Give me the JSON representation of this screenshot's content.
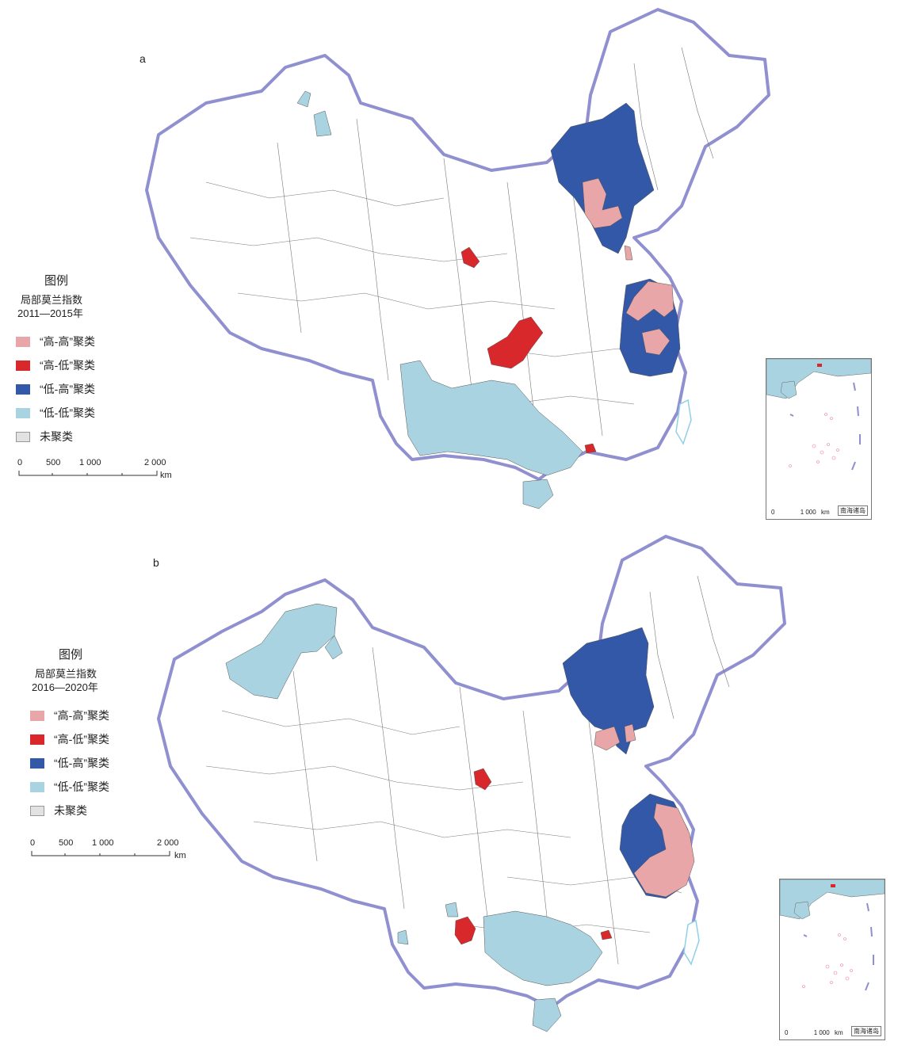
{
  "panels": [
    {
      "label": "a",
      "legend": {
        "title": "图例",
        "index_name": "局部莫兰指数",
        "period": "2011—2015年",
        "items": [
          {
            "label": "“高-高”聚类",
            "color": "#e8a6a8"
          },
          {
            "label": "“高-低”聚类",
            "color": "#d9282c"
          },
          {
            "label": "“低-高”聚类",
            "color": "#3358a8"
          },
          {
            "label": "“低-低”聚类",
            "color": "#a9d3e0"
          },
          {
            "label": "未聚类",
            "color": "#e2e2e2"
          }
        ]
      },
      "scale": {
        "ticks": [
          "0",
          "500",
          "1 000",
          "2 000"
        ],
        "unit": "km"
      },
      "inset": {
        "title": "南海诸岛",
        "scale_ticks": [
          "0",
          "1 000"
        ],
        "unit": "km"
      }
    },
    {
      "label": "b",
      "legend": {
        "title": "图例",
        "index_name": "局部莫兰指数",
        "period": "2016—2020年",
        "items": [
          {
            "label": "“高-高”聚类",
            "color": "#e8a6a8"
          },
          {
            "label": "“高-低”聚类",
            "color": "#d9282c"
          },
          {
            "label": "“低-高”聚类",
            "color": "#3358a8"
          },
          {
            "label": "“低-低”聚类",
            "color": "#a9d3e0"
          },
          {
            "label": "未聚类",
            "color": "#e2e2e2"
          }
        ]
      },
      "scale": {
        "ticks": [
          "0",
          "500",
          "1 000",
          "2 000"
        ],
        "unit": "km"
      },
      "inset": {
        "title": "南海诸岛",
        "scale_ticks": [
          "0",
          "1 000"
        ],
        "unit": "km"
      }
    }
  ],
  "colors": {
    "border": "#8f8fd0",
    "hh": "#e8a6a8",
    "hl": "#d9282c",
    "lh": "#3358a8",
    "ll": "#a9d3e0",
    "boundary": "#555555",
    "sea": "#8fd0e8"
  }
}
